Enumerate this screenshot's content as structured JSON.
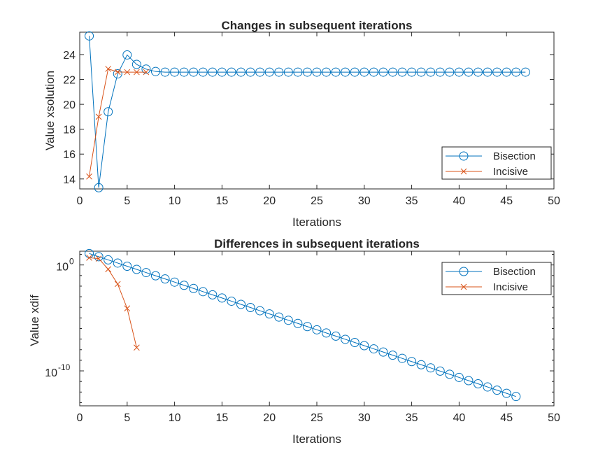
{
  "chart_data": [
    {
      "type": "line",
      "title": "Changes in subsequent iterations",
      "xlabel": "Iterations",
      "ylabel": "Value xsolution",
      "xlim": [
        0,
        50
      ],
      "ylim": [
        13.2,
        25.8
      ],
      "yscale": "linear",
      "xticks": [
        0,
        5,
        10,
        15,
        20,
        25,
        30,
        35,
        40,
        45,
        50
      ],
      "yticks": [
        14,
        16,
        18,
        20,
        22,
        24
      ],
      "grid": false,
      "legend_position": "bottom-right",
      "series": [
        {
          "name": "Bisection",
          "color": "#0072BD",
          "marker": "circle",
          "x": [
            1,
            2,
            3,
            4,
            5,
            6,
            7,
            8,
            9,
            10,
            11,
            12,
            13,
            14,
            15,
            16,
            17,
            18,
            19,
            20,
            21,
            22,
            23,
            24,
            25,
            26,
            27,
            28,
            29,
            30,
            31,
            32,
            33,
            34,
            35,
            36,
            37,
            38,
            39,
            40,
            41,
            42,
            43,
            44,
            45,
            46,
            47
          ],
          "y": [
            25.5,
            13.3,
            19.4,
            22.45,
            23.97,
            23.21,
            22.83,
            22.64,
            22.59,
            22.59,
            22.59,
            22.59,
            22.59,
            22.59,
            22.59,
            22.59,
            22.59,
            22.59,
            22.59,
            22.59,
            22.59,
            22.59,
            22.59,
            22.59,
            22.59,
            22.59,
            22.59,
            22.59,
            22.59,
            22.59,
            22.59,
            22.59,
            22.59,
            22.59,
            22.59,
            22.59,
            22.59,
            22.59,
            22.59,
            22.59,
            22.59,
            22.59,
            22.59,
            22.59,
            22.59,
            22.59,
            22.59
          ]
        },
        {
          "name": "Incisive",
          "color": "#D95319",
          "marker": "x",
          "x": [
            1,
            2,
            3,
            4,
            5,
            6,
            7
          ],
          "y": [
            14.2,
            19.0,
            22.85,
            22.6,
            22.59,
            22.59,
            22.59
          ]
        }
      ]
    },
    {
      "type": "line",
      "title": "Differences in subsequent iterations",
      "xlabel": "Iterations",
      "ylabel": "Value xdif",
      "xlim": [
        0,
        50
      ],
      "ylim_log10": [
        -13.3,
        1.3
      ],
      "yscale": "log",
      "xticks": [
        0,
        5,
        10,
        15,
        20,
        25,
        30,
        35,
        40,
        45,
        50
      ],
      "yticks_log10": [
        0,
        -10
      ],
      "ytick_labels": [
        {
          "base": "10",
          "exp": "0"
        },
        {
          "base": "10",
          "exp": "-10"
        }
      ],
      "grid": false,
      "legend_position": "top-right",
      "series": [
        {
          "name": "Bisection",
          "color": "#0072BD",
          "marker": "circle",
          "x": [
            1,
            2,
            3,
            4,
            5,
            6,
            7,
            8,
            9,
            10,
            11,
            12,
            13,
            14,
            15,
            16,
            17,
            18,
            19,
            20,
            21,
            22,
            23,
            24,
            25,
            26,
            27,
            28,
            29,
            30,
            31,
            32,
            33,
            34,
            35,
            36,
            37,
            38,
            39,
            40,
            41,
            42,
            43,
            44,
            45,
            46
          ],
          "log10_y": [
            1.08,
            0.78,
            0.48,
            0.18,
            -0.12,
            -0.42,
            -0.72,
            -1.02,
            -1.32,
            -1.62,
            -1.92,
            -2.22,
            -2.52,
            -2.82,
            -3.12,
            -3.42,
            -3.72,
            -4.02,
            -4.32,
            -4.62,
            -4.92,
            -5.22,
            -5.52,
            -5.82,
            -6.12,
            -6.42,
            -6.72,
            -7.02,
            -7.32,
            -7.62,
            -7.92,
            -8.22,
            -8.52,
            -8.82,
            -9.12,
            -9.42,
            -9.72,
            -10.02,
            -10.32,
            -10.62,
            -10.92,
            -11.22,
            -11.52,
            -11.82,
            -12.12,
            -12.42
          ]
        },
        {
          "name": "Incisive",
          "color": "#D95319",
          "marker": "x",
          "x": [
            1,
            2,
            3,
            4,
            5,
            6
          ],
          "log10_y": [
            0.68,
            0.6,
            -0.4,
            -1.8,
            -4.1,
            -7.8
          ]
        }
      ]
    }
  ]
}
